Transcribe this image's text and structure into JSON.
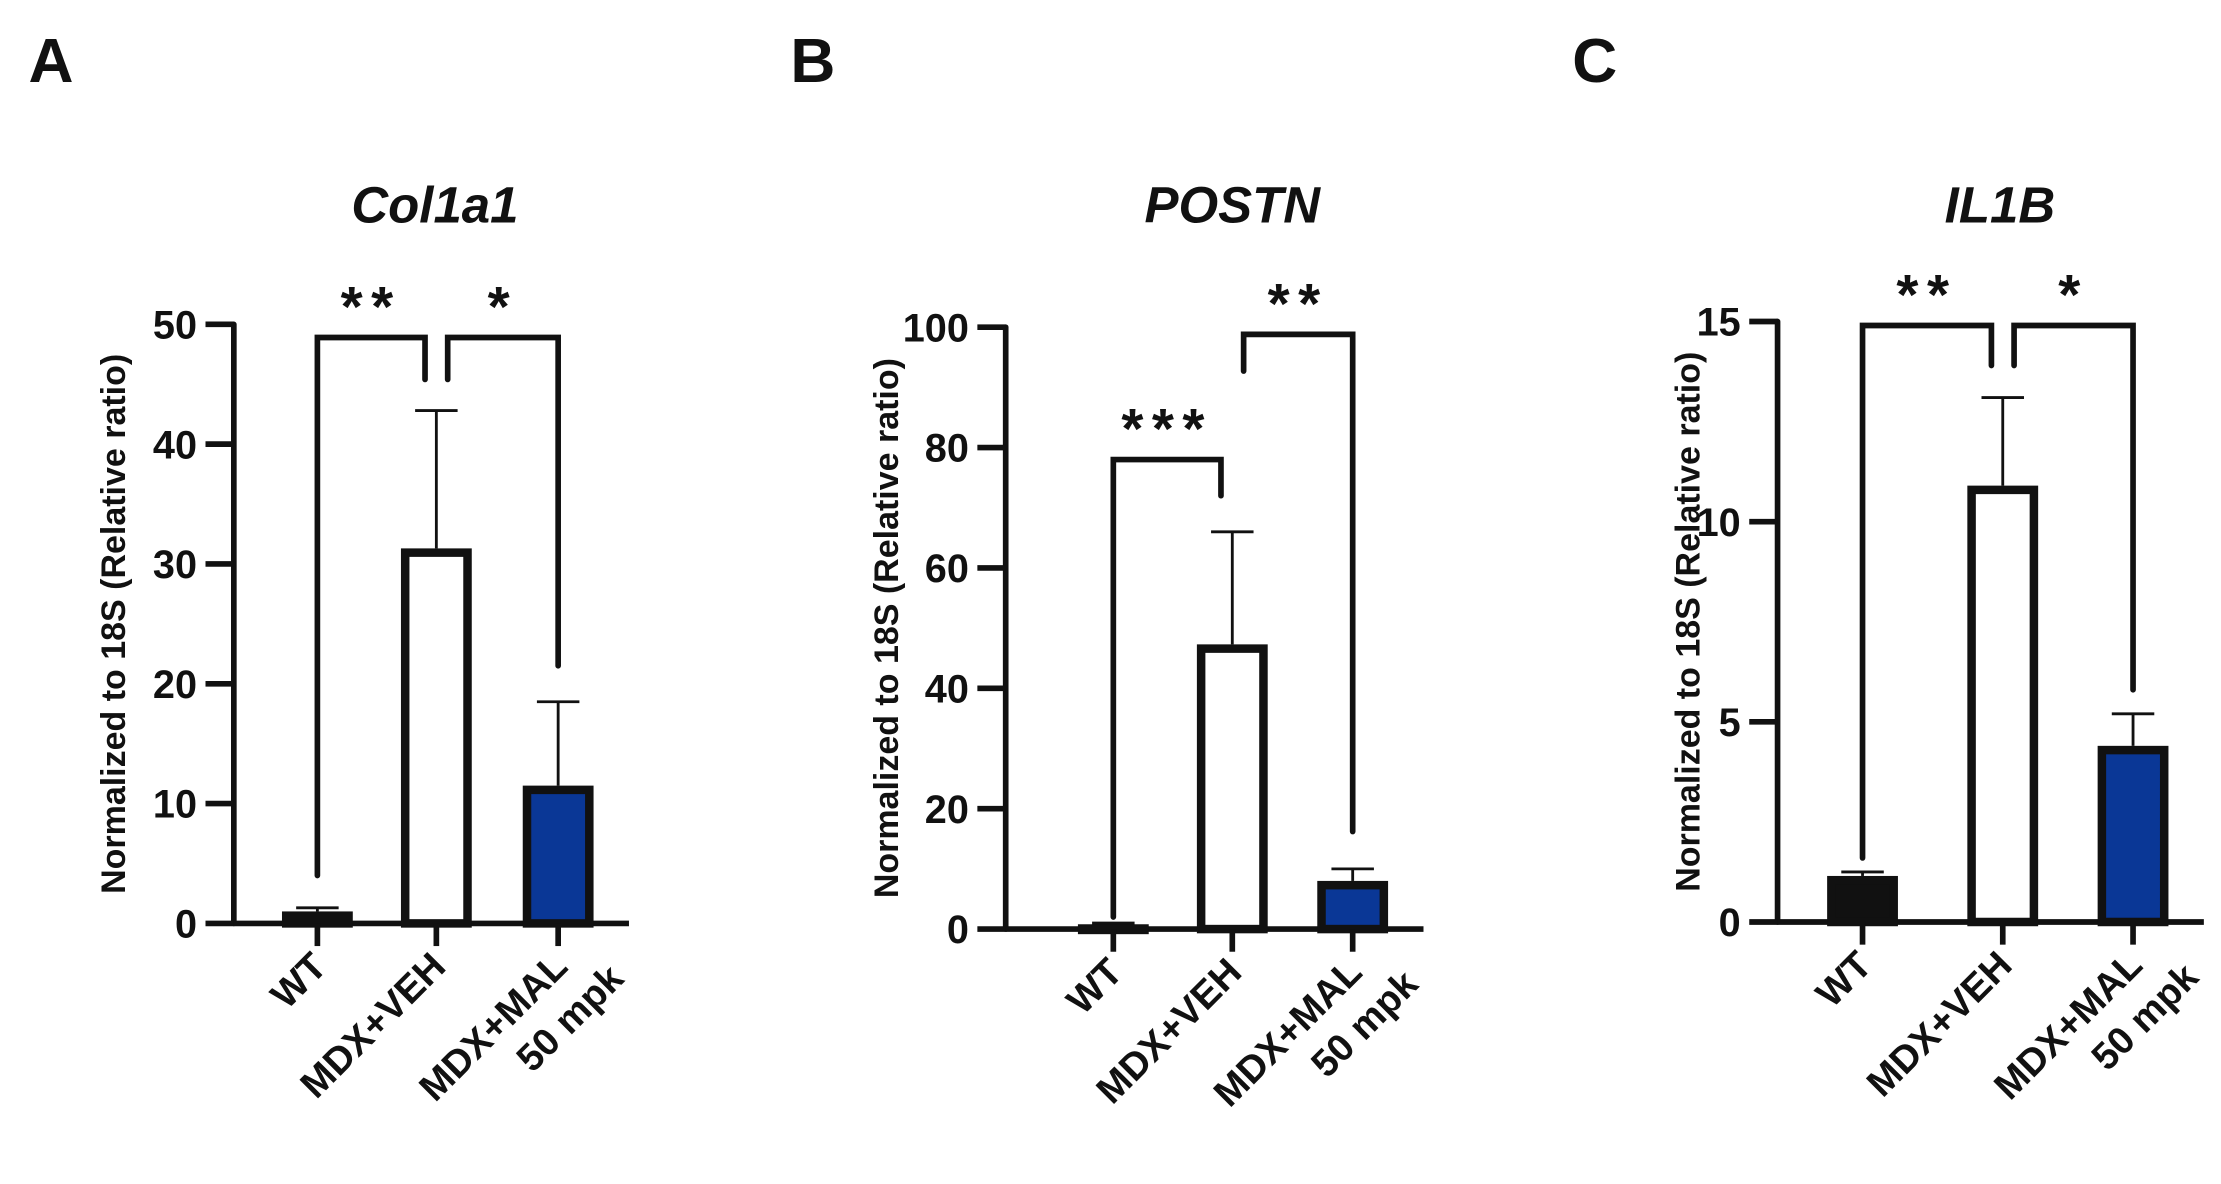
{
  "colors": {
    "wt": "#111111",
    "veh": "#ffffff",
    "mal": "#0a3796",
    "stroke": "#111111"
  },
  "chart_data": [
    {
      "type": "bar",
      "panel_letter": "A",
      "title": "Col1a1",
      "ylabel": "Normalized to 18S (Relative ratio)",
      "xlabel": "",
      "ylim": [
        0,
        50
      ],
      "yticks": [
        0,
        10,
        20,
        30,
        40,
        50
      ],
      "categories": [
        "WT",
        "MDX+VEH",
        "MDX+MAL 50 mpk"
      ],
      "category_lines": [
        [
          "WT"
        ],
        [
          "MDX+VEH"
        ],
        [
          "MDX+MAL",
          "50 mpk"
        ]
      ],
      "values": [
        1.0,
        31.3,
        11.5
      ],
      "error_upper": [
        1.3,
        42.8,
        18.5
      ],
      "significance": [
        {
          "from": 0,
          "to": 1,
          "label": "**",
          "y": 48.9,
          "leg_from": 4.0,
          "leg_to": 45.4
        },
        {
          "from": 1,
          "to": 2,
          "label": "*",
          "y": 48.9,
          "leg_from": 45.4,
          "leg_to": 21.5
        }
      ]
    },
    {
      "type": "bar",
      "panel_letter": "B",
      "title": "POSTN",
      "ylabel": "Normalized to 18S (Relative ratio)",
      "xlabel": "",
      "ylim": [
        0,
        100
      ],
      "yticks": [
        0,
        20,
        40,
        60,
        80,
        100
      ],
      "categories": [
        "WT",
        "MDX+VEH",
        "MDX+MAL 50 mpk"
      ],
      "category_lines": [
        [
          "WT"
        ],
        [
          "MDX+VEH"
        ],
        [
          "MDX+MAL",
          "50 mpk"
        ]
      ],
      "values": [
        0.8,
        47.3,
        8.0
      ],
      "error_upper": [
        1.0,
        66.0,
        10.0
      ],
      "significance": [
        {
          "from": 0,
          "to": 1,
          "label": "***",
          "y": 78.0,
          "leg_from": 2.0,
          "leg_to": 72.0
        },
        {
          "from": 1,
          "to": 2,
          "label": "**",
          "y": 98.8,
          "leg_from": 92.7,
          "leg_to": 16.2
        }
      ]
    },
    {
      "type": "bar",
      "panel_letter": "C",
      "title": "IL1B",
      "ylabel": "Normalized to 18S (Relative ratio)",
      "xlabel": "",
      "ylim": [
        0,
        15
      ],
      "yticks": [
        0,
        5,
        10,
        15
      ],
      "categories": [
        "WT",
        "MDX+VEH",
        "MDX+MAL 50 mpk"
      ],
      "category_lines": [
        [
          "WT"
        ],
        [
          "MDX+VEH"
        ],
        [
          "MDX+MAL",
          "50 mpk"
        ]
      ],
      "values": [
        1.15,
        10.9,
        4.4
      ],
      "error_upper": [
        1.25,
        13.1,
        5.2
      ],
      "significance": [
        {
          "from": 0,
          "to": 1,
          "label": "**",
          "y": 14.9,
          "leg_from": 1.6,
          "leg_to": 13.9
        },
        {
          "from": 1,
          "to": 2,
          "label": "*",
          "y": 14.9,
          "leg_from": 13.9,
          "leg_to": 5.8
        }
      ]
    }
  ]
}
